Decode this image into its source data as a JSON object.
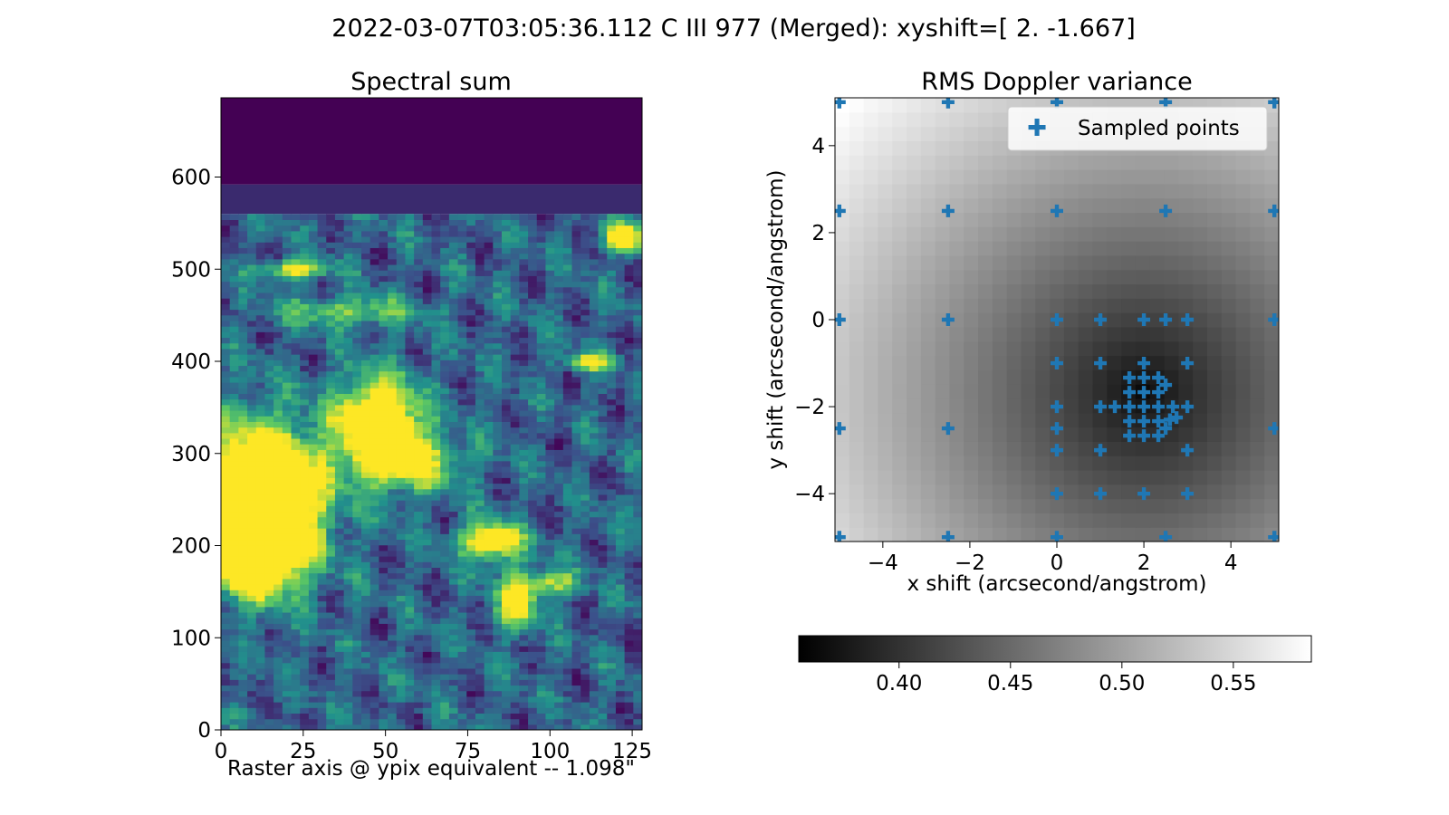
{
  "figure": {
    "suptitle": "2022-03-07T03:05:36.112 C III 977 (Merged): xyshift=[ 2.    -1.667]"
  },
  "chart_data": [
    {
      "type": "heatmap",
      "title": "Spectral sum",
      "xlabel": "Raster axis @ ypix equivalent -- 1.098\"",
      "ylabel": "",
      "colormap": "viridis",
      "xlim": [
        0,
        128
      ],
      "ylim": [
        0,
        686
      ],
      "xticks": [
        0,
        25,
        50,
        75,
        100,
        125
      ],
      "yticks": [
        0,
        100,
        200,
        300,
        400,
        500,
        600
      ],
      "description_note": "solar EUV raster image; bright active region near x 0-30, y 150-350; blank (no data) above y~590"
    },
    {
      "type": "heatmap",
      "title": "RMS Doppler variance",
      "xlabel": "x shift (arcsecond/angstrom)",
      "ylabel": "y shift (arcsecond/angstrom)",
      "colormap": "gray",
      "xlim": [
        -5.1,
        5.1
      ],
      "ylim": [
        -5.1,
        5.1
      ],
      "xticks": [
        -4,
        -2,
        0,
        2,
        4
      ],
      "yticks": [
        -4,
        -2,
        0,
        2,
        4
      ],
      "minimum": {
        "x": 2.0,
        "y": -1.667
      },
      "colorbar": {
        "range": [
          0.355,
          0.585
        ],
        "ticks": [
          0.4,
          0.45,
          0.5,
          0.55
        ]
      },
      "legend": {
        "label": "Sampled points",
        "position": "top-right"
      },
      "sampled_points": [
        [
          -5,
          5
        ],
        [
          -2.5,
          5
        ],
        [
          0,
          5
        ],
        [
          2.5,
          5
        ],
        [
          5,
          5
        ],
        [
          -5,
          2.5
        ],
        [
          -2.5,
          2.5
        ],
        [
          0,
          2.5
        ],
        [
          2.5,
          2.5
        ],
        [
          5,
          2.5
        ],
        [
          -5,
          0
        ],
        [
          -2.5,
          0
        ],
        [
          0,
          0
        ],
        [
          1,
          0
        ],
        [
          2,
          0
        ],
        [
          2.5,
          0
        ],
        [
          3,
          0
        ],
        [
          5,
          0
        ],
        [
          0,
          -1
        ],
        [
          1,
          -1
        ],
        [
          2,
          -1
        ],
        [
          3,
          -1
        ],
        [
          0,
          -2
        ],
        [
          0,
          -2.5
        ],
        [
          0,
          -3
        ],
        [
          1,
          -3
        ],
        [
          3,
          -3
        ],
        [
          0,
          -4
        ],
        [
          1,
          -4
        ],
        [
          2,
          -4
        ],
        [
          3,
          -4
        ],
        [
          -5,
          -2.5
        ],
        [
          -2.5,
          -2.5
        ],
        [
          5,
          -2.5
        ],
        [
          -5,
          -5
        ],
        [
          -2.5,
          -5
        ],
        [
          0,
          -5
        ],
        [
          2.5,
          -5
        ],
        [
          5,
          -5
        ],
        [
          1.667,
          -1.333
        ],
        [
          2,
          -1.333
        ],
        [
          2.333,
          -1.333
        ],
        [
          1.667,
          -1.667
        ],
        [
          2,
          -1.667
        ],
        [
          2.333,
          -1.667
        ],
        [
          1.667,
          -2
        ],
        [
          2,
          -2
        ],
        [
          2.333,
          -2
        ],
        [
          1.667,
          -2.333
        ],
        [
          2,
          -2.333
        ],
        [
          2.333,
          -2.333
        ],
        [
          1.667,
          -2.667
        ],
        [
          2,
          -2.667
        ],
        [
          2.333,
          -2.667
        ],
        [
          1,
          -2
        ],
        [
          1.333,
          -2
        ],
        [
          2.667,
          -2
        ],
        [
          3,
          -2
        ],
        [
          2.5,
          -1.5
        ],
        [
          2.5,
          -2.5
        ],
        [
          2.6,
          -2.3
        ],
        [
          2.75,
          -2.25
        ]
      ]
    }
  ]
}
